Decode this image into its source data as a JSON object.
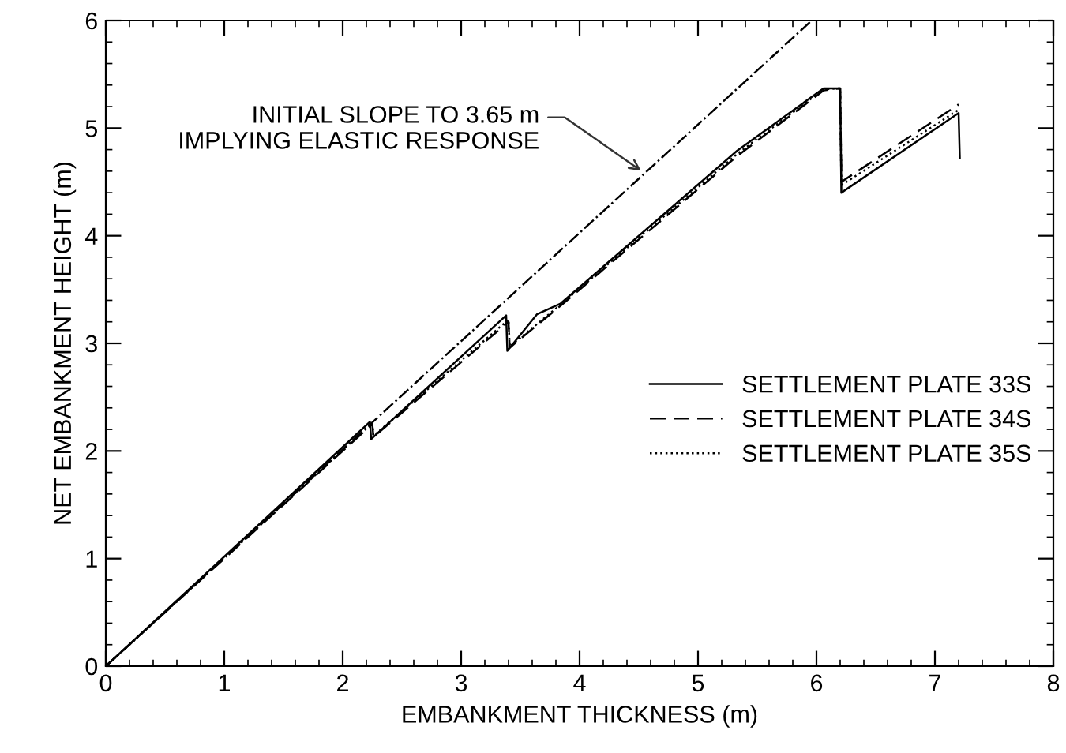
{
  "chart_data": {
    "type": "line",
    "xlabel": "EMBANKMENT THICKNESS (m)",
    "ylabel": "NET EMBANKMENT HEIGHT (m)",
    "xlim": [
      0,
      8
    ],
    "xticks": [
      0,
      1,
      2,
      3,
      4,
      5,
      6,
      7,
      8
    ],
    "ylim": [
      0,
      6
    ],
    "yticks": [
      0,
      1,
      2,
      3,
      4,
      5,
      6
    ],
    "grid": false,
    "legend": "right",
    "marker": "none",
    "series": [
      {
        "name": "SETTLEMENT PLATE 33S",
        "color": "#000000",
        "line_style": "solid",
        "x": [
          0,
          2.23,
          2.24,
          3.38,
          3.39,
          3.64,
          3.84,
          5.33,
          6.06,
          6.2,
          6.21,
          7.2,
          7.21
        ],
        "values": [
          0,
          2.27,
          2.11,
          3.26,
          2.93,
          3.27,
          3.37,
          4.79,
          5.37,
          5.37,
          4.4,
          5.14,
          4.72
        ]
      },
      {
        "name": "SETTLEMENT PLATE 34S",
        "color": "#000000",
        "line_style": "dashed",
        "x": [
          0,
          2.25,
          2.26,
          3.4,
          3.41,
          3.84,
          5.33,
          6.06,
          6.2,
          6.21,
          7.2
        ],
        "values": [
          0,
          2.25,
          2.13,
          3.2,
          2.96,
          3.35,
          4.74,
          5.35,
          5.37,
          4.5,
          5.22
        ]
      },
      {
        "name": "SETTLEMENT PLATE 35S",
        "color": "#000000",
        "line_style": "dotted",
        "x": [
          0,
          2.25,
          2.26,
          3.4,
          3.41,
          3.84,
          5.33,
          6.06,
          6.2,
          6.21,
          7.2
        ],
        "values": [
          0,
          2.26,
          2.14,
          3.22,
          2.97,
          3.36,
          4.76,
          5.36,
          5.37,
          4.47,
          5.17
        ]
      },
      {
        "color": "#000000",
        "line_style": "dashdot",
        "x": [
          0,
          5.96
        ],
        "values": [
          0,
          6
        ]
      }
    ],
    "annotations": [
      {
        "text": "INITIAL SLOPE TO 3.65 m\nIMPLYING ELASTIC RESPONSE",
        "x": 4.55,
        "y": 4.58
      }
    ]
  }
}
